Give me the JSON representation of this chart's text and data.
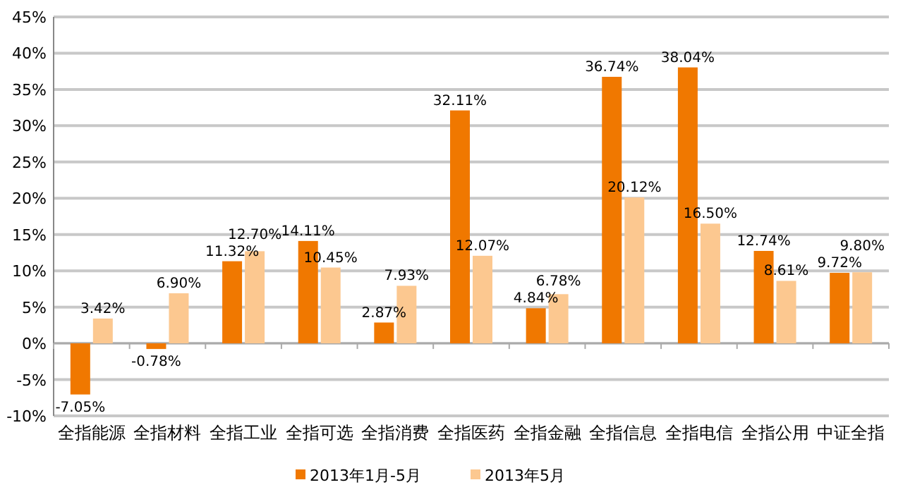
{
  "chart_data": {
    "type": "bar",
    "categories": [
      "全指能源",
      "全指材料",
      "全指工业",
      "全指可选",
      "全指消费",
      "全指医药",
      "全指金融",
      "全指信息",
      "全指电信",
      "全指公用",
      "中证全指"
    ],
    "series": [
      {
        "name": "2013年1月-5月",
        "color": "#f07800",
        "values": [
          -7.05,
          -0.78,
          11.32,
          14.11,
          2.87,
          32.11,
          4.84,
          36.74,
          38.04,
          12.74,
          9.72
        ],
        "value_labels": [
          "-7.05%",
          "-0.78%",
          "11.32%",
          "14.11%",
          "2.87%",
          "32.11%",
          "4.84%",
          "36.74%",
          "38.04%",
          "12.74%",
          "9.72%"
        ]
      },
      {
        "name": "2013年5月",
        "color": "#fcc890",
        "values": [
          3.42,
          6.9,
          12.7,
          10.45,
          7.93,
          12.07,
          6.78,
          20.12,
          16.5,
          8.61,
          9.8
        ],
        "value_labels": [
          "3.42%",
          "6.90%",
          "12.70%",
          "10.45%",
          "7.93%",
          "12.07%",
          "6.78%",
          "20.12%",
          "16.50%",
          "8.61%",
          "9.80%"
        ]
      }
    ],
    "ylim": [
      -10,
      45
    ],
    "yticks": [
      {
        "value": -10,
        "label": "-10%"
      },
      {
        "value": -5,
        "label": "-5%"
      },
      {
        "value": 0,
        "label": "0%"
      },
      {
        "value": 5,
        "label": "5%"
      },
      {
        "value": 10,
        "label": "10%"
      },
      {
        "value": 15,
        "label": "15%"
      },
      {
        "value": 20,
        "label": "20%"
      },
      {
        "value": 25,
        "label": "25%"
      },
      {
        "value": 30,
        "label": "30%"
      },
      {
        "value": 35,
        "label": "35%"
      },
      {
        "value": 40,
        "label": "40%"
      },
      {
        "value": 45,
        "label": "45%"
      }
    ],
    "grid": "y",
    "legend": "bottom"
  }
}
